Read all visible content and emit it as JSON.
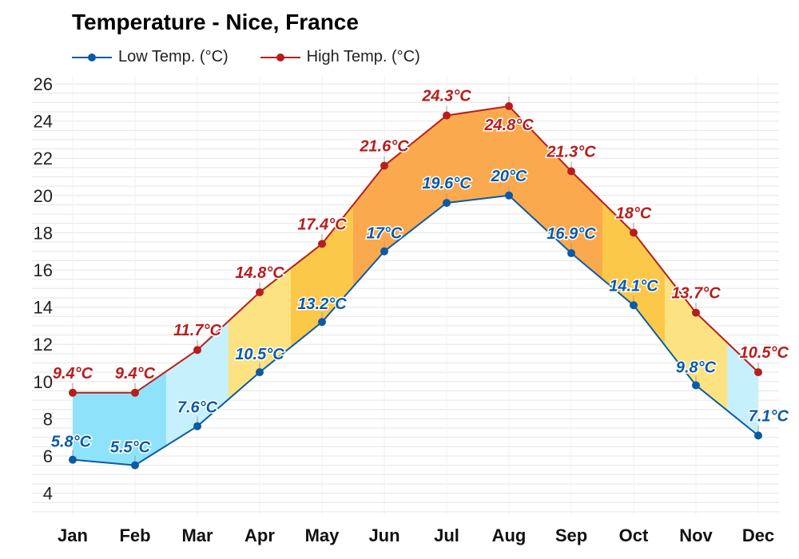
{
  "chart_data": {
    "type": "line",
    "title": "Temperature - Nice, France",
    "categories": [
      "Jan",
      "Feb",
      "Mar",
      "Apr",
      "May",
      "Jun",
      "Jul",
      "Aug",
      "Sep",
      "Oct",
      "Nov",
      "Dec"
    ],
    "series": [
      {
        "name": "Low Temp. (°C)",
        "color": "#0b5aa6",
        "values": [
          5.8,
          5.5,
          7.6,
          10.5,
          13.2,
          17,
          19.6,
          20,
          16.9,
          14.1,
          9.8,
          7.1
        ]
      },
      {
        "name": "High Temp. (°C)",
        "color": "#b81d1d",
        "values": [
          9.4,
          9.4,
          11.7,
          14.8,
          17.4,
          21.6,
          24.3,
          24.8,
          21.3,
          18,
          13.7,
          10.5
        ]
      }
    ],
    "unit_suffix": "°C",
    "ylim": [
      3,
      26
    ],
    "yticks": [
      4,
      6,
      8,
      10,
      12,
      14,
      16,
      18,
      20,
      22,
      24,
      26
    ],
    "grid": true,
    "legend": "top-left",
    "band_colors": [
      "#8ee3fb",
      "#c6f0fb",
      "#fde282",
      "#fcc849",
      "#fba94e"
    ]
  }
}
